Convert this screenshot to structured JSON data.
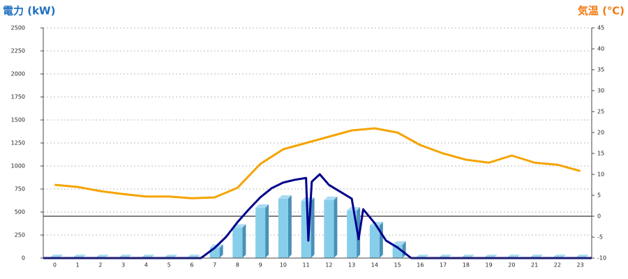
{
  "chart_data": {
    "type": "combo",
    "y_title": "電力 (kW)",
    "y2_title": "気温 (℃)",
    "categories": [
      "0",
      "1",
      "2",
      "3",
      "4",
      "5",
      "6",
      "7",
      "8",
      "9",
      "10",
      "11",
      "12",
      "13",
      "14",
      "15",
      "16",
      "17",
      "18",
      "19",
      "20",
      "21",
      "22",
      "23"
    ],
    "xlim": [
      -0.5,
      23.5
    ],
    "ylim": [
      0,
      2500
    ],
    "yticks": [
      0,
      250,
      500,
      750,
      1000,
      1250,
      1500,
      1750,
      2000,
      2250,
      2500
    ],
    "y2lim": [
      -10,
      45
    ],
    "y2ticks": [
      -10,
      -5,
      0,
      5,
      10,
      15,
      20,
      25,
      30,
      35,
      40,
      45
    ],
    "grid": true,
    "series": [
      {
        "type": "bar",
        "color": "#87ceeb",
        "values": [
          0,
          0,
          0,
          0,
          0,
          0,
          0,
          110,
          330,
          545,
          645,
          620,
          630,
          515,
          355,
          145,
          0,
          0,
          0,
          0,
          0,
          0,
          0,
          0
        ]
      },
      {
        "type": "line",
        "color": "#00008b",
        "x": [
          -0.5,
          6.4,
          7,
          7.5,
          8,
          8.5,
          9,
          9.5,
          10,
          10.5,
          11,
          11.1,
          11.25,
          11.6,
          12,
          12.5,
          13,
          13.3,
          13.5,
          14,
          14.5,
          15,
          15.6,
          23.5
        ],
        "values": [
          0,
          0,
          110,
          230,
          390,
          530,
          660,
          760,
          820,
          850,
          870,
          190,
          830,
          910,
          795,
          720,
          645,
          205,
          530,
          380,
          190,
          115,
          0,
          0
        ]
      },
      {
        "type": "line",
        "axis": "y2",
        "color": "#f5a300",
        "values": [
          7.5,
          7,
          6,
          5.3,
          4.7,
          4.7,
          4.3,
          4.5,
          6.8,
          12.5,
          16,
          17.5,
          19,
          20.5,
          21,
          20,
          17,
          15,
          13.5,
          12.8,
          14.5,
          12.8,
          12.3,
          10.8
        ]
      }
    ]
  }
}
